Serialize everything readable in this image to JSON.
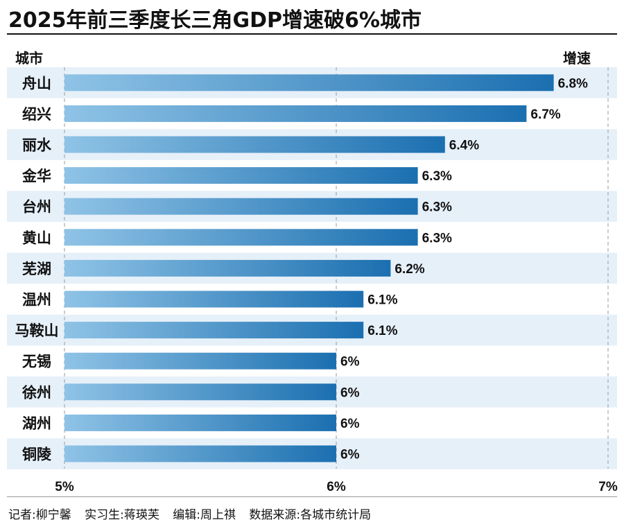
{
  "header": {
    "title": "2025年前三季度长三角GDP增速破6%城市",
    "col_city": "城市",
    "col_rate": "增速"
  },
  "chart_data": {
    "type": "bar",
    "orientation": "horizontal",
    "title": "2025年前三季度长三角GDP增速破6%城市",
    "xlabel": "",
    "ylabel": "城市",
    "categories": [
      "舟山",
      "绍兴",
      "丽水",
      "金华",
      "台州",
      "黄山",
      "芜湖",
      "温州",
      "马鞍山",
      "无锡",
      "徐州",
      "湖州",
      "铜陵"
    ],
    "values": [
      6.8,
      6.7,
      6.4,
      6.3,
      6.3,
      6.3,
      6.2,
      6.1,
      6.1,
      6.0,
      6.0,
      6.0,
      6.0
    ],
    "value_labels": [
      "6.8%",
      "6.7%",
      "6.4%",
      "6.3%",
      "6.3%",
      "6.3%",
      "6.2%",
      "6.1%",
      "6.1%",
      "6%",
      "6%",
      "6%",
      "6%"
    ],
    "xlim": [
      5,
      7
    ],
    "xticks": [
      5,
      6,
      7
    ],
    "xtick_labels": [
      "5%",
      "6%",
      "7%"
    ],
    "grid": true,
    "colors": {
      "bar_start": "#8fc3e6",
      "bar_end": "#1b6fb0",
      "row_band": "#e6f0f9",
      "grid": "#9a9a9a"
    }
  },
  "footer": {
    "reporter": "记者:柳宁馨",
    "intern": "实习生:蒋瑛芙",
    "editor": "编辑:周上祺",
    "source": "数据来源:各城市统计局"
  }
}
